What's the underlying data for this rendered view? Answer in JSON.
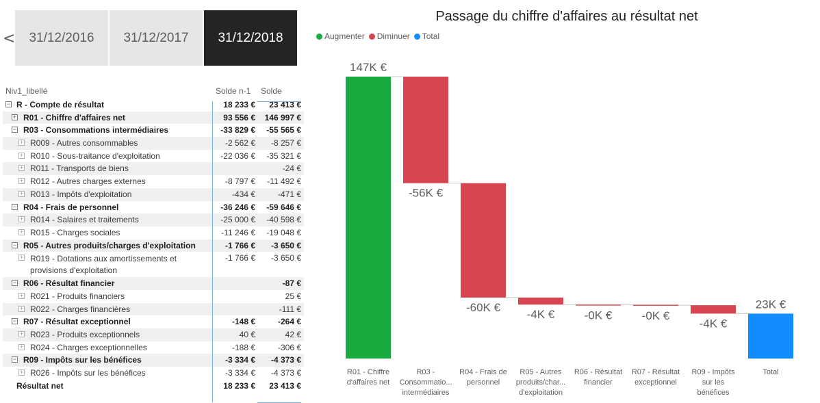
{
  "slicer": {
    "chevron": "<",
    "dates": [
      "31/12/2016",
      "31/12/2017",
      "31/12/2018"
    ],
    "selected": 2
  },
  "matrix": {
    "headers": {
      "label": "Niv1_libellé",
      "col1": "Solde n-1",
      "col2": "Solde"
    },
    "rows": [
      {
        "label": "R - Compte de résultat",
        "v1": "18 233 €",
        "v2": "23 413 €",
        "level": 0,
        "exp": "minus",
        "shade": false
      },
      {
        "label": "R01 - Chiffre d'affaires net",
        "v1": "93 556 €",
        "v2": "146 997 €",
        "level": 1,
        "exp": "plus",
        "shade": true
      },
      {
        "label": "R03 - Consommations intermédiaires",
        "v1": "-33 829 €",
        "v2": "-55 565 €",
        "level": 1,
        "exp": "minus",
        "shade": false
      },
      {
        "label": "R009 - Autres consommables",
        "v1": "-2 562 €",
        "v2": "-8 257 €",
        "level": 2,
        "exp": "plus",
        "shade": true
      },
      {
        "label": "R010 - Sous-traitance d'exploitation",
        "v1": "-22 036 €",
        "v2": "-35 321 €",
        "level": 2,
        "exp": "plus",
        "shade": false
      },
      {
        "label": "R011 - Transports de biens",
        "v1": "",
        "v2": "-24 €",
        "level": 2,
        "exp": "plus",
        "shade": true
      },
      {
        "label": "R012 - Autres charges externes",
        "v1": "-8 797 €",
        "v2": "-11 492 €",
        "level": 2,
        "exp": "plus",
        "shade": false
      },
      {
        "label": "R013 - Impôts d'exploitation",
        "v1": "-434 €",
        "v2": "-471 €",
        "level": 2,
        "exp": "plus",
        "shade": true
      },
      {
        "label": "R04 - Frais de personnel",
        "v1": "-36 246 €",
        "v2": "-59 646 €",
        "level": 1,
        "exp": "minus",
        "shade": false
      },
      {
        "label": "R014 - Salaires et traitements",
        "v1": "-25 000 €",
        "v2": "-40 598 €",
        "level": 2,
        "exp": "plus",
        "shade": true
      },
      {
        "label": "R015 - Charges sociales",
        "v1": "-11 246 €",
        "v2": "-19 048 €",
        "level": 2,
        "exp": "plus",
        "shade": false
      },
      {
        "label": "R05 - Autres produits/charges d'exploitation",
        "v1": "-1 766 €",
        "v2": "-3 650 €",
        "level": 1,
        "exp": "minus",
        "shade": true
      },
      {
        "label": "R019 - Dotations aux amortissements et provisions d'exploitation",
        "v1": "-1 766 €",
        "v2": "-3 650 €",
        "level": 2,
        "exp": "plus",
        "shade": false,
        "tall": true
      },
      {
        "label": "R06 - Résultat financier",
        "v1": "",
        "v2": "-87 €",
        "level": 1,
        "exp": "minus",
        "shade": true
      },
      {
        "label": "R021 - Produits financiers",
        "v1": "",
        "v2": "25 €",
        "level": 2,
        "exp": "plus",
        "shade": false
      },
      {
        "label": "R022 - Charges financières",
        "v1": "",
        "v2": "-111 €",
        "level": 2,
        "exp": "plus",
        "shade": true
      },
      {
        "label": "R07 - Résultat exceptionnel",
        "v1": "-148 €",
        "v2": "-264 €",
        "level": 1,
        "exp": "minus",
        "shade": false
      },
      {
        "label": "R023 - Produits exceptionnels",
        "v1": "40 €",
        "v2": "42 €",
        "level": 2,
        "exp": "plus",
        "shade": true
      },
      {
        "label": "R024 - Charges exceptionnelles",
        "v1": "-188 €",
        "v2": "-306 €",
        "level": 2,
        "exp": "plus",
        "shade": false
      },
      {
        "label": "R09 - Impôts sur les bénéfices",
        "v1": "-3 334 €",
        "v2": "-4 373 €",
        "level": 1,
        "exp": "minus",
        "shade": true
      },
      {
        "label": "R026 - Impôts sur les bénéfices",
        "v1": "-3 334 €",
        "v2": "-4 373 €",
        "level": 2,
        "exp": "plus",
        "shade": false
      },
      {
        "label": "Résultat net",
        "v1": "18 233 €",
        "v2": "23 413 €",
        "level": 0,
        "exp": "",
        "shade": false,
        "total": true
      }
    ]
  },
  "chart_data": {
    "type": "waterfall",
    "title": "Passage du chiffre d'affaires au résultat net",
    "legend": [
      {
        "name": "Augmenter",
        "color": "#1aab40"
      },
      {
        "name": "Diminuer",
        "color": "#d64550"
      },
      {
        "name": "Total",
        "color": "#118dff"
      }
    ],
    "legend_position": "top-left",
    "categories": [
      "R01 - Chiffre d'affaires net",
      "R03 - Consommatio... intermédiaires",
      "R04 - Frais de personnel",
      "R05 - Autres produits/char... d'exploitation",
      "R06 - Résultat financier",
      "R07 - Résultat exceptionnel",
      "R09 - Impôts sur les bénéfices",
      "Total"
    ],
    "values": [
      146997,
      -55565,
      -59646,
      -3650,
      -87,
      -264,
      -4373,
      23413
    ],
    "kinds": [
      "increase",
      "decrease",
      "decrease",
      "decrease",
      "decrease",
      "decrease",
      "decrease",
      "total"
    ],
    "data_labels": [
      "147K €",
      "-56K €",
      "-60K €",
      "-4K €",
      "-0K €",
      "-0K €",
      "-4K €",
      "23K €"
    ],
    "ylim": [
      0,
      146997
    ],
    "grid": false
  }
}
